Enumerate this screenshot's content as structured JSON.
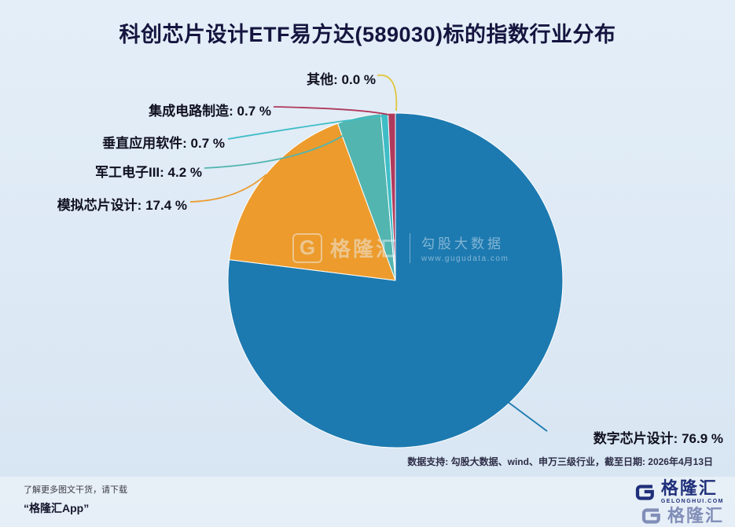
{
  "title": "科创芯片设计ETF易方达(589030)标的指数行业分布",
  "chart_data": {
    "type": "pie",
    "title": "科创芯片设计ETF易方达(589030)标的指数行业分布",
    "unit": "%",
    "direction": "clockwise",
    "start_angle": "12-oclock",
    "series": [
      {
        "label": "数字芯片设计",
        "value": 76.9,
        "color": "#1d7ab0"
      },
      {
        "label": "模拟芯片设计",
        "value": 17.4,
        "color": "#ec9b2c"
      },
      {
        "label": "军工电子III",
        "value": 4.2,
        "color": "#53b5af"
      },
      {
        "label": "垂直应用软件",
        "value": 0.7,
        "color": "#3fbdc6"
      },
      {
        "label": "集成电路制造",
        "value": 0.7,
        "color": "#b03a5c"
      },
      {
        "label": "其他",
        "value": 0.0,
        "color": "#e2c63e"
      }
    ],
    "label_format": "{label}: {value} %",
    "legend": "none",
    "grid": false
  },
  "watermark": {
    "brand": "格隆汇",
    "name": "勾股大数据",
    "url": "www.gugudata.com"
  },
  "footer": {
    "data_note": "数据支持: 勾股大数据、wind、申万三级行业，截至日期: 2026年4月13日",
    "promo_line1": "了解更多图文干货，请下载",
    "promo_line2": "“格隆汇App”"
  },
  "logo": {
    "brand": "格隆汇",
    "tagline": "GELONGHUI.COM"
  }
}
